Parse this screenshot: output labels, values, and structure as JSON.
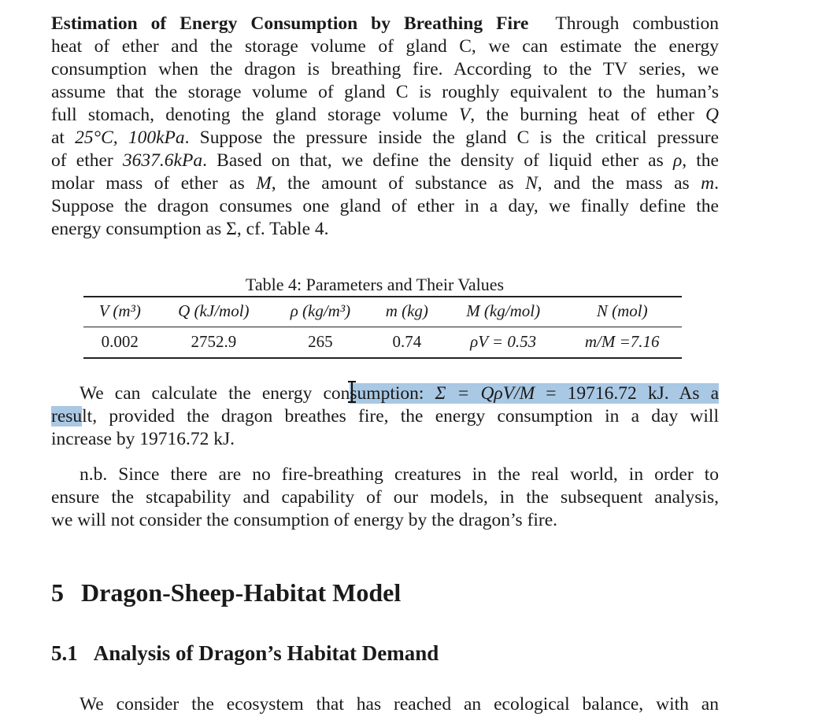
{
  "paragraph1": {
    "runin": "Estimation of Energy Consumption by Breathing Fire",
    "l1_rest": "Through combustion",
    "l2": "heat of ether and the storage volume of gland C, we can estimate the energy",
    "l3": "consumption when the dragon is breathing fire. According to the TV series, we",
    "l4": "assume that the storage volume of gland C is roughly equivalent to the human’s",
    "l5a": "full stomach, denoting the gland storage volume",
    "l5b": "V",
    "l5c": ", the burning heat of ether",
    "l5d": "Q",
    "l6a": "at",
    "l6b": "25°C, 100kPa",
    "l6c": ". Suppose the pressure inside the gland C is the critical pressure",
    "l7a": "of ether",
    "l7b": "3637.6kPa",
    "l7c": ". Based on that, we define the density of liquid ether as",
    "l7d": "ρ",
    "l7e": ", the",
    "l8a": "molar mass of ether as",
    "l8b": "M",
    "l8c": ", the amount of substance as",
    "l8d": "N",
    "l8e": ", and the mass as",
    "l8f": "m",
    "l8g": ".",
    "l9": "Suppose the dragon consumes one gland of ether in a day, we finally define the",
    "l10a": "energy consumption as",
    "l10b": "Σ",
    "l10c": ", cf. Table 4."
  },
  "table": {
    "caption": "Table 4: Parameters and Their Values",
    "headers": [
      "V (m³)",
      "Q (kJ/mol)",
      "ρ (kg/m³)",
      "m (kg)",
      "M (kg/mol)",
      "N (mol)"
    ],
    "row": [
      "0.002",
      "2752.9",
      "265",
      "0.74",
      "ρV = 0.53",
      "m/M =7.16"
    ]
  },
  "paragraph2": {
    "l1a": "We can calculate the energy con",
    "l1b": "sumption: ",
    "l1c": "Σ = QρV/M",
    "l1d": " = ",
    "l1e": "19716.72 kJ",
    "l1f": ". As a",
    "l2a": "resu",
    "l2b": "lt",
    "l2c": ", provided the dragon breathes fire, the energy consumption in a day will",
    "l3a": "increase by",
    "l3b": "19716.72 kJ",
    "l3c": "."
  },
  "paragraph3": {
    "l1": "n.b. Since there are no fire-breathing creatures in the real world, in order to",
    "l2": "ensure the stcapability and capability of our models, in the subsequent analysis,",
    "l3": "we will not consider the consumption of energy by the dragon’s fire."
  },
  "section": {
    "number": "5",
    "title": "Dragon-Sheep-Habitat Model"
  },
  "subsection": {
    "number": "5.1",
    "title": "Analysis of Dragon’s Habitat Demand"
  },
  "paragraph4": {
    "l1": "We consider the ecosystem that has reached an ecological balance, with an"
  },
  "colors": {
    "selection": "#a9c8e4",
    "text": "#1a1a1a"
  }
}
